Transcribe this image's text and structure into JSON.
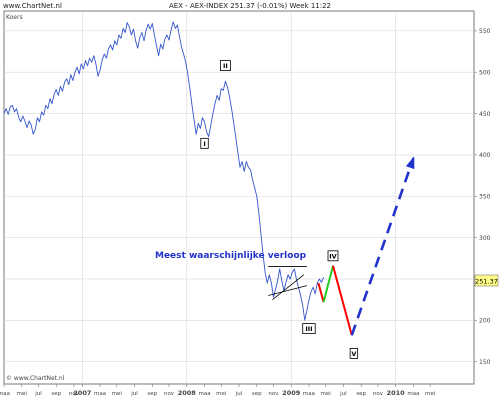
{
  "header": {
    "source": "www.ChartNet.nl",
    "title": "AEX - AEX-INDEX   251.37 (-0.01%)   Week  11:22"
  },
  "chart_data": {
    "type": "line",
    "series_label": "Koers",
    "watermark": "© www.ChartNet.nl",
    "annotation": "Meest waarschijnlijke verloop",
    "current_value": "251.37",
    "y_ticks": [
      150,
      200,
      250,
      300,
      350,
      400,
      450,
      500,
      550
    ],
    "y_tick_labels": [
      "150",
      "200",
      "250",
      "300",
      "350",
      "400",
      "450",
      "500",
      "550"
    ],
    "ylim": [
      123,
      574
    ],
    "xlim": [
      2006.25,
      2010.75
    ],
    "x_ticks": [
      {
        "x": 2006.25,
        "label": "maa"
      },
      {
        "x": 2006.42,
        "label": "mei"
      },
      {
        "x": 2006.58,
        "label": "jul"
      },
      {
        "x": 2006.75,
        "label": "sep"
      },
      {
        "x": 2006.92,
        "label": "nov"
      },
      {
        "x": 2007.0,
        "label": "2007",
        "major": true
      },
      {
        "x": 2007.17,
        "label": "maa"
      },
      {
        "x": 2007.33,
        "label": "mei"
      },
      {
        "x": 2007.5,
        "label": "jul"
      },
      {
        "x": 2007.67,
        "label": "sep"
      },
      {
        "x": 2007.83,
        "label": "nov"
      },
      {
        "x": 2008.0,
        "label": "2008",
        "major": true
      },
      {
        "x": 2008.17,
        "label": "maa"
      },
      {
        "x": 2008.33,
        "label": "mei"
      },
      {
        "x": 2008.5,
        "label": "jul"
      },
      {
        "x": 2008.67,
        "label": "sep"
      },
      {
        "x": 2008.83,
        "label": "nov"
      },
      {
        "x": 2009.0,
        "label": "2009",
        "major": true
      },
      {
        "x": 2009.17,
        "label": "maa"
      },
      {
        "x": 2009.33,
        "label": "mei"
      },
      {
        "x": 2009.5,
        "label": "jul"
      },
      {
        "x": 2009.67,
        "label": "sep"
      },
      {
        "x": 2009.83,
        "label": "nov"
      },
      {
        "x": 2010.0,
        "label": "2010",
        "major": true
      },
      {
        "x": 2010.17,
        "label": "maa"
      },
      {
        "x": 2010.33,
        "label": "mei"
      }
    ],
    "series": [
      {
        "color": "#3355cc",
        "points": [
          [
            2006.25,
            450
          ],
          [
            2006.27,
            456
          ],
          [
            2006.29,
            449
          ],
          [
            2006.31,
            458
          ],
          [
            2006.33,
            460
          ],
          [
            2006.35,
            452
          ],
          [
            2006.37,
            456
          ],
          [
            2006.39,
            446
          ],
          [
            2006.41,
            440
          ],
          [
            2006.43,
            447
          ],
          [
            2006.45,
            441
          ],
          [
            2006.47,
            433
          ],
          [
            2006.49,
            441
          ],
          [
            2006.51,
            436
          ],
          [
            2006.53,
            425
          ],
          [
            2006.55,
            431
          ],
          [
            2006.57,
            445
          ],
          [
            2006.59,
            440
          ],
          [
            2006.61,
            452
          ],
          [
            2006.63,
            448
          ],
          [
            2006.65,
            460
          ],
          [
            2006.67,
            456
          ],
          [
            2006.69,
            468
          ],
          [
            2006.71,
            462
          ],
          [
            2006.73,
            473
          ],
          [
            2006.75,
            479
          ],
          [
            2006.77,
            472
          ],
          [
            2006.79,
            483
          ],
          [
            2006.81,
            477
          ],
          [
            2006.83,
            488
          ],
          [
            2006.85,
            492
          ],
          [
            2006.87,
            485
          ],
          [
            2006.89,
            497
          ],
          [
            2006.91,
            490
          ],
          [
            2006.93,
            500
          ],
          [
            2006.95,
            506
          ],
          [
            2006.97,
            498
          ],
          [
            2006.99,
            510
          ],
          [
            2007.01,
            504
          ],
          [
            2007.03,
            514
          ],
          [
            2007.05,
            508
          ],
          [
            2007.07,
            517
          ],
          [
            2007.09,
            512
          ],
          [
            2007.11,
            520
          ],
          [
            2007.13,
            510
          ],
          [
            2007.15,
            495
          ],
          [
            2007.17,
            503
          ],
          [
            2007.19,
            515
          ],
          [
            2007.21,
            522
          ],
          [
            2007.23,
            517
          ],
          [
            2007.25,
            528
          ],
          [
            2007.27,
            533
          ],
          [
            2007.29,
            527
          ],
          [
            2007.31,
            538
          ],
          [
            2007.33,
            533
          ],
          [
            2007.35,
            545
          ],
          [
            2007.37,
            541
          ],
          [
            2007.39,
            553
          ],
          [
            2007.41,
            548
          ],
          [
            2007.43,
            560
          ],
          [
            2007.45,
            555
          ],
          [
            2007.47,
            545
          ],
          [
            2007.49,
            552
          ],
          [
            2007.51,
            538
          ],
          [
            2007.53,
            529
          ],
          [
            2007.55,
            542
          ],
          [
            2007.57,
            548
          ],
          [
            2007.59,
            538
          ],
          [
            2007.61,
            550
          ],
          [
            2007.63,
            558
          ],
          [
            2007.65,
            552
          ],
          [
            2007.67,
            559
          ],
          [
            2007.69,
            545
          ],
          [
            2007.71,
            532
          ],
          [
            2007.73,
            520
          ],
          [
            2007.75,
            534
          ],
          [
            2007.77,
            528
          ],
          [
            2007.79,
            540
          ],
          [
            2007.81,
            545
          ],
          [
            2007.83,
            539
          ],
          [
            2007.85,
            551
          ],
          [
            2007.87,
            561
          ],
          [
            2007.89,
            553
          ],
          [
            2007.91,
            557
          ],
          [
            2007.93,
            543
          ],
          [
            2007.95,
            530
          ],
          [
            2007.97,
            522
          ],
          [
            2007.99,
            512
          ],
          [
            2008.01,
            498
          ],
          [
            2008.03,
            480
          ],
          [
            2008.05,
            460
          ],
          [
            2008.07,
            442
          ],
          [
            2008.09,
            425
          ],
          [
            2008.11,
            438
          ],
          [
            2008.13,
            432
          ],
          [
            2008.15,
            445
          ],
          [
            2008.17,
            440
          ],
          [
            2008.19,
            428
          ],
          [
            2008.21,
            422
          ],
          [
            2008.23,
            436
          ],
          [
            2008.25,
            450
          ],
          [
            2008.27,
            462
          ],
          [
            2008.29,
            472
          ],
          [
            2008.31,
            466
          ],
          [
            2008.33,
            480
          ],
          [
            2008.35,
            478
          ],
          [
            2008.37,
            489
          ],
          [
            2008.39,
            482
          ],
          [
            2008.41,
            470
          ],
          [
            2008.43,
            455
          ],
          [
            2008.45,
            438
          ],
          [
            2008.47,
            420
          ],
          [
            2008.49,
            402
          ],
          [
            2008.51,
            385
          ],
          [
            2008.53,
            392
          ],
          [
            2008.55,
            380
          ],
          [
            2008.57,
            392
          ],
          [
            2008.59,
            385
          ],
          [
            2008.61,
            382
          ],
          [
            2008.63,
            370
          ],
          [
            2008.65,
            360
          ],
          [
            2008.67,
            350
          ],
          [
            2008.69,
            330
          ],
          [
            2008.71,
            305
          ],
          [
            2008.73,
            280
          ],
          [
            2008.75,
            258
          ],
          [
            2008.77,
            245
          ],
          [
            2008.79,
            255
          ],
          [
            2008.81,
            245
          ],
          [
            2008.83,
            228
          ],
          [
            2008.85,
            238
          ],
          [
            2008.87,
            248
          ],
          [
            2008.89,
            262
          ],
          [
            2008.91,
            248
          ],
          [
            2008.93,
            236
          ],
          [
            2008.95,
            246
          ],
          [
            2008.97,
            255
          ],
          [
            2008.99,
            250
          ],
          [
            2009.01,
            258
          ],
          [
            2009.03,
            262
          ],
          [
            2009.05,
            250
          ],
          [
            2009.07,
            240
          ],
          [
            2009.09,
            230
          ],
          [
            2009.11,
            218
          ],
          [
            2009.13,
            200
          ],
          [
            2009.15,
            212
          ],
          [
            2009.17,
            225
          ],
          [
            2009.19,
            235
          ],
          [
            2009.21,
            240
          ],
          [
            2009.23,
            232
          ],
          [
            2009.25,
            245
          ],
          [
            2009.27,
            250
          ],
          [
            2009.29,
            246
          ],
          [
            2009.31,
            252
          ]
        ]
      }
    ],
    "triangle_lines": [
      [
        [
          2008.78,
          265
        ],
        [
          2009.15,
          265
        ]
      ],
      [
        [
          2008.78,
          230
        ],
        [
          2009.15,
          242
        ]
      ],
      [
        [
          2008.82,
          225
        ],
        [
          2009.12,
          255
        ]
      ]
    ],
    "projection": [
      {
        "color": "#ff0000",
        "points": [
          [
            2009.26,
            245
          ],
          [
            2009.31,
            222
          ]
        ]
      },
      {
        "color": "#22cc22",
        "points": [
          [
            2009.31,
            222
          ],
          [
            2009.4,
            266
          ]
        ]
      },
      {
        "color": "#ff0000",
        "points": [
          [
            2009.4,
            266
          ],
          [
            2009.58,
            182
          ]
        ]
      },
      {
        "color": "#2233cc",
        "dashed": true,
        "points": [
          [
            2009.58,
            182
          ],
          [
            2010.17,
            396
          ]
        ]
      }
    ],
    "wave_labels": [
      {
        "label": "I",
        "x": 2008.17,
        "y": 414
      },
      {
        "label": "II",
        "x": 2008.37,
        "y": 508
      },
      {
        "label": "III",
        "x": 2009.17,
        "y": 190
      },
      {
        "label": "IV",
        "x": 2009.4,
        "y": 278
      },
      {
        "label": "V",
        "x": 2009.6,
        "y": 160
      }
    ]
  }
}
